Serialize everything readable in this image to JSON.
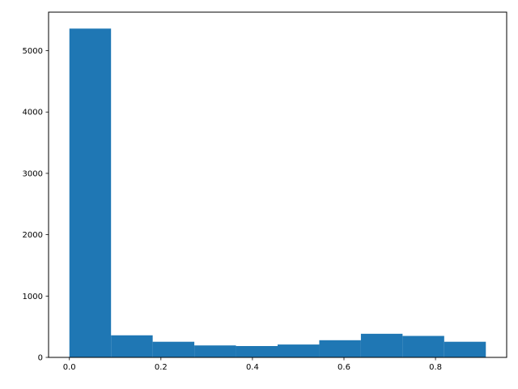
{
  "chart_data": {
    "type": "bar",
    "subtype": "histogram",
    "title": "",
    "xlabel": "",
    "ylabel": "",
    "bins": [
      {
        "start": 0.0,
        "end": 0.091,
        "count": 5360
      },
      {
        "start": 0.091,
        "end": 0.182,
        "count": 360
      },
      {
        "start": 0.182,
        "end": 0.273,
        "count": 255
      },
      {
        "start": 0.273,
        "end": 0.364,
        "count": 195
      },
      {
        "start": 0.364,
        "end": 0.455,
        "count": 185
      },
      {
        "start": 0.455,
        "end": 0.546,
        "count": 210
      },
      {
        "start": 0.546,
        "end": 0.637,
        "count": 280
      },
      {
        "start": 0.637,
        "end": 0.728,
        "count": 385
      },
      {
        "start": 0.728,
        "end": 0.819,
        "count": 350
      },
      {
        "start": 0.819,
        "end": 0.91,
        "count": 255
      }
    ],
    "xlim": [
      -0.0455,
      0.9555
    ],
    "ylim": [
      0,
      5628
    ],
    "xticks": [
      0.0,
      0.2,
      0.4,
      0.6,
      0.8
    ],
    "xtick_labels": [
      "0.0",
      "0.2",
      "0.4",
      "0.6",
      "0.8"
    ],
    "yticks": [
      0,
      1000,
      2000,
      3000,
      4000,
      5000
    ],
    "ytick_labels": [
      "0",
      "1000",
      "2000",
      "3000",
      "4000",
      "5000"
    ],
    "bar_color": "#1f77b4",
    "grid": false,
    "legend": "none"
  }
}
